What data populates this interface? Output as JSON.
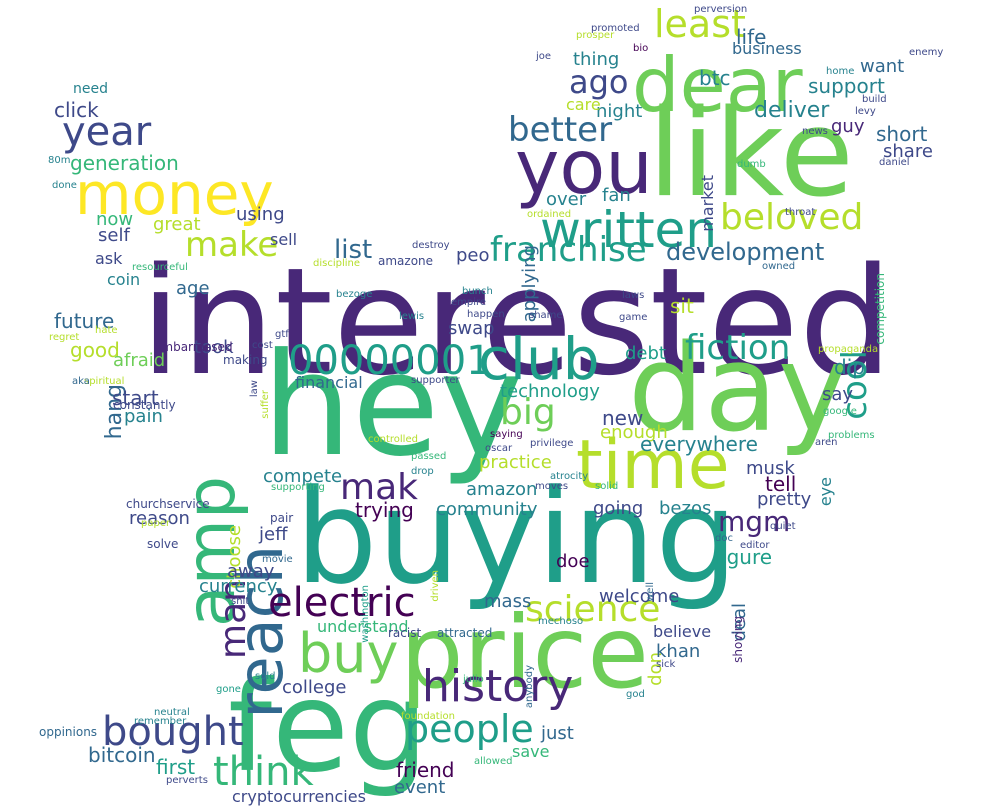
{
  "palette": [
    "#440154",
    "#482878",
    "#3e4989",
    "#31688e",
    "#26828e",
    "#1f9e89",
    "#35b779",
    "#6ece58",
    "#b5de2b",
    "#fde725"
  ],
  "words": [
    {
      "text": "interested",
      "color": "#482878"
    },
    {
      "text": "buying",
      "color": "#1f9e89"
    },
    {
      "text": "hey",
      "color": "#35b779"
    },
    {
      "text": "feg",
      "color": "#35b779"
    },
    {
      "text": "like",
      "color": "#6ece58"
    },
    {
      "text": "day",
      "color": "#6ece58"
    },
    {
      "text": "price",
      "color": "#6ece58"
    },
    {
      "text": "you",
      "color": "#482878"
    },
    {
      "text": "dear",
      "color": "#6ece58"
    },
    {
      "text": "time",
      "color": "#b5de2b"
    },
    {
      "text": "money",
      "color": "#fde725"
    },
    {
      "text": "amp",
      "color": "#35b779"
    },
    {
      "text": "reach",
      "color": "#31688e"
    },
    {
      "text": "club",
      "color": "#1f9e89"
    },
    {
      "text": "written",
      "color": "#1f9e89"
    },
    {
      "text": "buy",
      "color": "#6ece58"
    },
    {
      "text": "history",
      "color": "#482878"
    },
    {
      "text": "electric",
      "color": "#440154"
    },
    {
      "text": "year",
      "color": "#3e4989"
    },
    {
      "text": "people",
      "color": "#1f9e89"
    },
    {
      "text": "bought",
      "color": "#3e4989"
    },
    {
      "text": "think",
      "color": "#35b779"
    },
    {
      "text": "00000001",
      "color": "#1f9e89"
    },
    {
      "text": "science",
      "color": "#b5de2b"
    },
    {
      "text": "fiction",
      "color": "#1f9e89"
    },
    {
      "text": "franchise",
      "color": "#1f9e89"
    },
    {
      "text": "better",
      "color": "#31688e"
    },
    {
      "text": "beloved",
      "color": "#b5de2b"
    },
    {
      "text": "cool",
      "color": "#1f9e89"
    },
    {
      "text": "least",
      "color": "#b5de2b"
    },
    {
      "text": "mak",
      "color": "#482878"
    },
    {
      "text": "man",
      "color": "#482878"
    },
    {
      "text": "big",
      "color": "#6ece58"
    },
    {
      "text": "make",
      "color": "#b5de2b"
    },
    {
      "text": "ago",
      "color": "#3e4989"
    },
    {
      "text": "mgm",
      "color": "#482878"
    },
    {
      "text": "development",
      "color": "#31688e"
    },
    {
      "text": "list",
      "color": "#31688e"
    },
    {
      "text": "click",
      "color": "#3e4989"
    },
    {
      "text": "generation",
      "color": "#35b779"
    },
    {
      "text": "deliver",
      "color": "#26828e"
    },
    {
      "text": "support",
      "color": "#26828e"
    },
    {
      "text": "life",
      "color": "#31688e"
    },
    {
      "text": "btc",
      "color": "#26828e"
    },
    {
      "text": "business",
      "color": "#31688e"
    },
    {
      "text": "want",
      "color": "#31688e"
    },
    {
      "text": "short",
      "color": "#31688e"
    },
    {
      "text": "share",
      "color": "#3e4989"
    },
    {
      "text": "guy",
      "color": "#482878"
    },
    {
      "text": "night",
      "color": "#26828e"
    },
    {
      "text": "care",
      "color": "#b5de2b"
    },
    {
      "text": "thing",
      "color": "#26828e"
    },
    {
      "text": "market",
      "color": "#3e4989"
    },
    {
      "text": "fan",
      "color": "#26828e"
    },
    {
      "text": "over",
      "color": "#26828e"
    },
    {
      "text": "applying",
      "color": "#31688e"
    },
    {
      "text": "using",
      "color": "#3e4989"
    },
    {
      "text": "great",
      "color": "#b5de2b"
    },
    {
      "text": "now",
      "color": "#35b779"
    },
    {
      "text": "self",
      "color": "#3e4989"
    },
    {
      "text": "sell",
      "color": "#3e4989"
    },
    {
      "text": "ask",
      "color": "#3e4989"
    },
    {
      "text": "coin",
      "color": "#26828e"
    },
    {
      "text": "age",
      "color": "#31688e"
    },
    {
      "text": "future",
      "color": "#31688e"
    },
    {
      "text": "good",
      "color": "#b5de2b"
    },
    {
      "text": "hang",
      "color": "#31688e"
    },
    {
      "text": "afraid",
      "color": "#6ece58"
    },
    {
      "text": "took",
      "color": "#3e4989"
    },
    {
      "text": "start",
      "color": "#3e4989"
    },
    {
      "text": "pain",
      "color": "#26828e"
    },
    {
      "text": "financial",
      "color": "#31688e"
    },
    {
      "text": "technology",
      "color": "#1f9e89"
    },
    {
      "text": "swap",
      "color": "#3e4989"
    },
    {
      "text": "peo",
      "color": "#3e4989"
    },
    {
      "text": "sit",
      "color": "#b5de2b"
    },
    {
      "text": "debt",
      "color": "#1f9e89"
    },
    {
      "text": "dip",
      "color": "#26828e"
    },
    {
      "text": "say",
      "color": "#3e4989"
    },
    {
      "text": "new",
      "color": "#3e4989"
    },
    {
      "text": "enough",
      "color": "#b5de2b"
    },
    {
      "text": "everywhere",
      "color": "#26828e"
    },
    {
      "text": "musk",
      "color": "#3e4989"
    },
    {
      "text": "tell",
      "color": "#440154"
    },
    {
      "text": "eye",
      "color": "#26828e"
    },
    {
      "text": "pretty",
      "color": "#3e4989"
    },
    {
      "text": "practice",
      "color": "#b5de2b"
    },
    {
      "text": "amazon",
      "color": "#26828e"
    },
    {
      "text": "community",
      "color": "#26828e"
    },
    {
      "text": "going",
      "color": "#3e4989"
    },
    {
      "text": "bezos",
      "color": "#26828e"
    },
    {
      "text": "trying",
      "color": "#440154"
    },
    {
      "text": "compete",
      "color": "#26828e"
    },
    {
      "text": "reason",
      "color": "#3e4989"
    },
    {
      "text": "choose",
      "color": "#b5de2b"
    },
    {
      "text": "jeff",
      "color": "#3e4989"
    },
    {
      "text": "away",
      "color": "#3e4989"
    },
    {
      "text": "currency",
      "color": "#26828e"
    },
    {
      "text": "figure",
      "color": "#1f9e89"
    },
    {
      "text": "deal",
      "color": "#31688e"
    },
    {
      "text": "doe",
      "color": "#440154"
    },
    {
      "text": "welcome",
      "color": "#3e4989"
    },
    {
      "text": "mass",
      "color": "#31688e"
    },
    {
      "text": "understand",
      "color": "#35b779"
    },
    {
      "text": "don",
      "color": "#b5de2b"
    },
    {
      "text": "believe",
      "color": "#3e4989"
    },
    {
      "text": "khan",
      "color": "#31688e"
    },
    {
      "text": "college",
      "color": "#3e4989"
    },
    {
      "text": "first",
      "color": "#1f9e89"
    },
    {
      "text": "bitcoin",
      "color": "#31688e"
    },
    {
      "text": "friend",
      "color": "#440154"
    },
    {
      "text": "just",
      "color": "#31688e"
    },
    {
      "text": "save",
      "color": "#35b779"
    },
    {
      "text": "event",
      "color": "#31688e"
    },
    {
      "text": "cryptocurrencies",
      "color": "#3e4989"
    },
    {
      "text": "need",
      "color": "#26828e"
    },
    {
      "text": "80m",
      "color": "#26828e"
    },
    {
      "text": "done",
      "color": "#26828e"
    },
    {
      "text": "resourceful",
      "color": "#35b779"
    },
    {
      "text": "regret",
      "color": "#b5de2b"
    },
    {
      "text": "hate",
      "color": "#b5de2b"
    },
    {
      "text": "embarrassed",
      "color": "#482878"
    },
    {
      "text": "making",
      "color": "#3e4989"
    },
    {
      "text": "spiritual",
      "color": "#b5de2b"
    },
    {
      "text": "aka",
      "color": "#31688e"
    },
    {
      "text": "constantly",
      "color": "#3e4989"
    },
    {
      "text": "churchservice",
      "color": "#3e4989"
    },
    {
      "text": "paper",
      "color": "#b5de2b"
    },
    {
      "text": "solve",
      "color": "#3e4989"
    },
    {
      "text": "pair",
      "color": "#3e4989"
    },
    {
      "text": "movie",
      "color": "#31688e"
    },
    {
      "text": "shit",
      "color": "#3e4989"
    },
    {
      "text": "gone",
      "color": "#1f9e89"
    },
    {
      "text": "sold",
      "color": "#26828e"
    },
    {
      "text": "neutral",
      "color": "#26828e"
    },
    {
      "text": "remember",
      "color": "#26828e"
    },
    {
      "text": "oppinions",
      "color": "#31688e"
    },
    {
      "text": "perverts",
      "color": "#3e4989"
    },
    {
      "text": "gtf",
      "color": "#3e4989"
    },
    {
      "text": "cost",
      "color": "#3e4989"
    },
    {
      "text": "law",
      "color": "#3e4989"
    },
    {
      "text": "suffer",
      "color": "#b5de2b"
    },
    {
      "text": "supporting",
      "color": "#35b779"
    },
    {
      "text": "washington",
      "color": "#1f9e89"
    },
    {
      "text": "racist",
      "color": "#3e4989"
    },
    {
      "text": "attracted",
      "color": "#31688e"
    },
    {
      "text": "foundation",
      "color": "#b5de2b"
    },
    {
      "text": "allowed",
      "color": "#35b779"
    },
    {
      "text": "julio",
      "color": "#35b779"
    },
    {
      "text": "anybody",
      "color": "#31688e"
    },
    {
      "text": "mechoso",
      "color": "#26828e"
    },
    {
      "text": "driven",
      "color": "#b5de2b"
    },
    {
      "text": "well",
      "color": "#31688e"
    },
    {
      "text": "shoving",
      "color": "#482878"
    },
    {
      "text": "god",
      "color": "#26828e"
    },
    {
      "text": "sick",
      "color": "#3e4989"
    },
    {
      "text": "editor",
      "color": "#3e4989"
    },
    {
      "text": "doc",
      "color": "#31688e"
    },
    {
      "text": "quiet",
      "color": "#3e4989"
    },
    {
      "text": "solid",
      "color": "#35b779"
    },
    {
      "text": "moves",
      "color": "#3e4989"
    },
    {
      "text": "atrocity",
      "color": "#26828e"
    },
    {
      "text": "oscar",
      "color": "#3e4989"
    },
    {
      "text": "saying",
      "color": "#440154"
    },
    {
      "text": "privilege",
      "color": "#3e4989"
    },
    {
      "text": "controlled",
      "color": "#b5de2b"
    },
    {
      "text": "passed",
      "color": "#35b779"
    },
    {
      "text": "drop",
      "color": "#26828e"
    },
    {
      "text": "supporter",
      "color": "#3e4989"
    },
    {
      "text": "shame",
      "color": "#3e4989"
    },
    {
      "text": "happen",
      "color": "#3e4989"
    },
    {
      "text": "game",
      "color": "#3e4989"
    },
    {
      "text": "lewis",
      "color": "#26828e"
    },
    {
      "text": "bunch",
      "color": "#26828e"
    },
    {
      "text": "empire",
      "color": "#3e4989"
    },
    {
      "text": "laws",
      "color": "#3e4989"
    },
    {
      "text": "bezoge",
      "color": "#26828e"
    },
    {
      "text": "amazone",
      "color": "#3e4989"
    },
    {
      "text": "discipline",
      "color": "#b5de2b"
    },
    {
      "text": "destroy",
      "color": "#3e4989"
    },
    {
      "text": "ordained",
      "color": "#b5de2b"
    },
    {
      "text": "throat",
      "color": "#3e4989"
    },
    {
      "text": "owned",
      "color": "#31688e"
    },
    {
      "text": "dumb",
      "color": "#35b779"
    },
    {
      "text": "competition",
      "color": "#35b779"
    },
    {
      "text": "daniel",
      "color": "#3e4989"
    },
    {
      "text": "news",
      "color": "#3e4989"
    },
    {
      "text": "levy",
      "color": "#3e4989"
    },
    {
      "text": "build",
      "color": "#3e4989"
    },
    {
      "text": "home",
      "color": "#26828e"
    },
    {
      "text": "propaganda",
      "color": "#b5de2b"
    },
    {
      "text": "google",
      "color": "#35b779"
    },
    {
      "text": "problems",
      "color": "#35b779"
    },
    {
      "text": "aren",
      "color": "#3e4989"
    },
    {
      "text": "promoted",
      "color": "#3e4989"
    },
    {
      "text": "perversion",
      "color": "#3e4989"
    },
    {
      "text": "prosper",
      "color": "#b5de2b"
    },
    {
      "text": "bio",
      "color": "#440154"
    },
    {
      "text": "joe",
      "color": "#3e4989"
    },
    {
      "text": "enemy",
      "color": "#3e4989"
    }
  ]
}
